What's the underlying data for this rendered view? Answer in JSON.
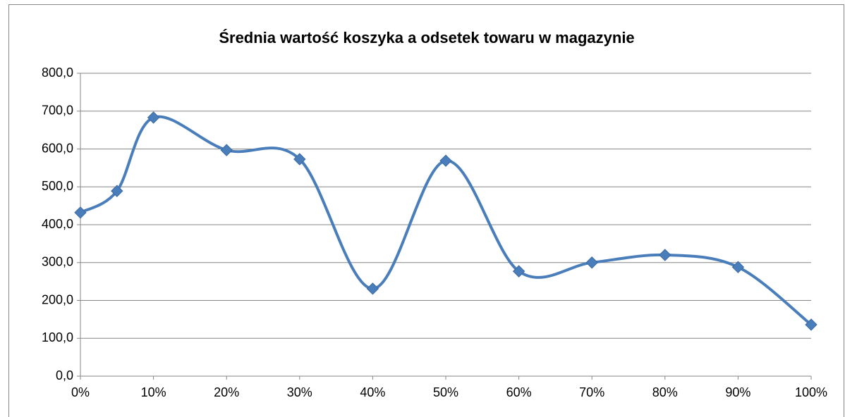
{
  "chart_data": {
    "type": "line",
    "title": "Średnia wartość koszyka a odsetek towaru w magazynie",
    "x": [
      0,
      5,
      10,
      20,
      30,
      40,
      50,
      60,
      70,
      80,
      90,
      100
    ],
    "series": [
      {
        "color": "#4a7ebb",
        "values": [
          432,
          489,
          683,
          597,
          573,
          231,
          569,
          277,
          300,
          320,
          288,
          136
        ]
      }
    ],
    "xlim": [
      0,
      100
    ],
    "xticks": [
      {
        "value": 0,
        "label": "0%"
      },
      {
        "value": 10,
        "label": "10%"
      },
      {
        "value": 20,
        "label": "20%"
      },
      {
        "value": 30,
        "label": "30%"
      },
      {
        "value": 40,
        "label": "40%"
      },
      {
        "value": 50,
        "label": "50%"
      },
      {
        "value": 60,
        "label": "60%"
      },
      {
        "value": 70,
        "label": "70%"
      },
      {
        "value": 80,
        "label": "80%"
      },
      {
        "value": 90,
        "label": "90%"
      },
      {
        "value": 100,
        "label": "100%"
      }
    ],
    "ylim": [
      0,
      800
    ],
    "yticks": [
      {
        "value": 0,
        "label": "0,0"
      },
      {
        "value": 100,
        "label": "100,0"
      },
      {
        "value": 200,
        "label": "200,0"
      },
      {
        "value": 300,
        "label": "300,0"
      },
      {
        "value": 400,
        "label": "400,0"
      },
      {
        "value": 500,
        "label": "500,0"
      },
      {
        "value": 600,
        "label": "600,0"
      },
      {
        "value": 700,
        "label": "700,0"
      },
      {
        "value": 800,
        "label": "800,0"
      }
    ],
    "grid": true,
    "smooth": true
  }
}
